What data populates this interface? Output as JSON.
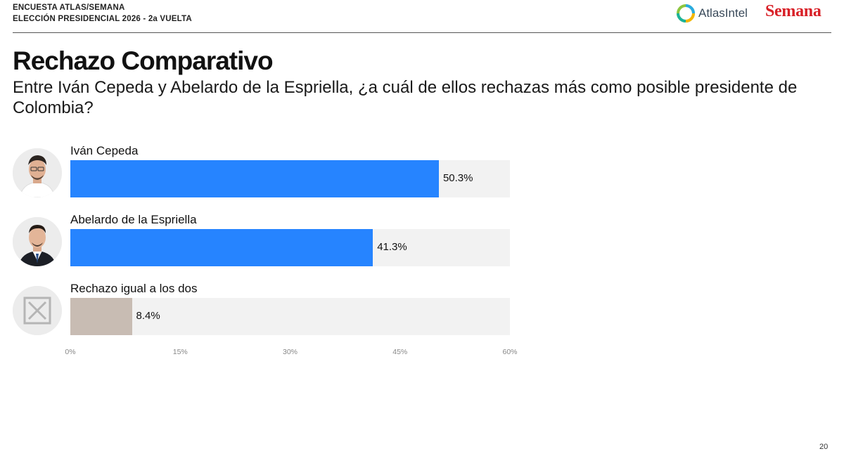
{
  "header": {
    "line1": "ENCUESTA ATLAS/SEMANA",
    "line2": "ELECCIÓN PRESIDENCIAL 2026 - 2a VUELTA",
    "atlas_brand": "AtlasIntel",
    "semana_brand": "Semana"
  },
  "title": "Rechazo Comparativo",
  "question": "Entre Iván Cepeda y Abelardo de la Espriella, ¿a cuál de ellos rechazas más como posible presidente de Colombia?",
  "chart_data": {
    "type": "bar",
    "orientation": "horizontal",
    "categories": [
      "Iván Cepeda",
      "Abelardo de la Espriella",
      "Rechazo igual a los dos"
    ],
    "values": [
      50.3,
      41.3,
      8.4
    ],
    "value_labels": [
      "50.3%",
      "41.3%",
      "8.4%"
    ],
    "colors": [
      "#2684ff",
      "#2684ff",
      "#c8bcb3"
    ],
    "xlim": [
      0,
      60
    ],
    "x_ticks": [
      "0%",
      "15%",
      "30%",
      "45%",
      "60%"
    ],
    "grid": false,
    "track_color": "#f2f2f2"
  },
  "page_number": "20"
}
